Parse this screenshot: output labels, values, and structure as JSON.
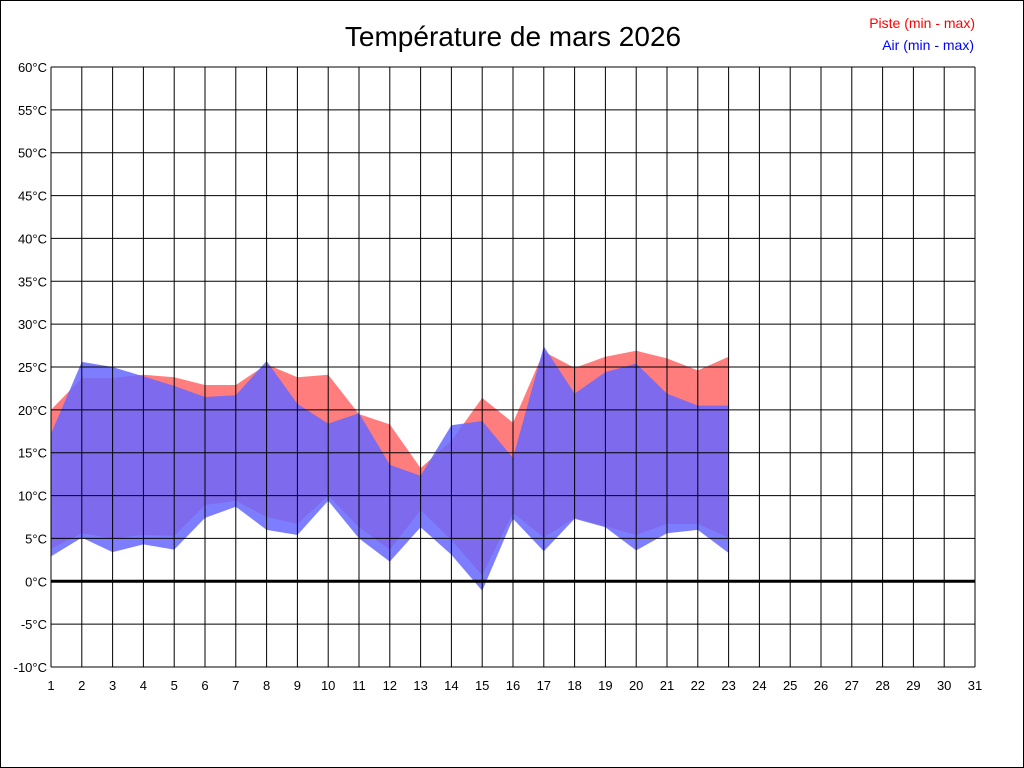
{
  "chart_data": {
    "type": "area",
    "title": "Température de mars 2026",
    "xlabel": "",
    "ylabel": "",
    "x": [
      1,
      2,
      3,
      4,
      5,
      6,
      7,
      8,
      9,
      10,
      11,
      12,
      13,
      14,
      15,
      16,
      17,
      18,
      19,
      20,
      21,
      22,
      23
    ],
    "x_ticks": [
      "1",
      "2",
      "3",
      "4",
      "5",
      "6",
      "7",
      "8",
      "9",
      "10",
      "11",
      "12",
      "13",
      "14",
      "15",
      "16",
      "17",
      "18",
      "19",
      "20",
      "21",
      "22",
      "23",
      "24",
      "25",
      "26",
      "27",
      "28",
      "29",
      "30",
      "31"
    ],
    "xlim": [
      1,
      31
    ],
    "ylim": [
      -10,
      60
    ],
    "y_ticks": [
      "-10°C",
      "-5°C",
      "0°C",
      "5°C",
      "10°C",
      "15°C",
      "20°C",
      "25°C",
      "30°C",
      "35°C",
      "40°C",
      "45°C",
      "50°C",
      "55°C",
      "60°C"
    ],
    "y_tick_values": [
      -10,
      -5,
      0,
      5,
      10,
      15,
      20,
      25,
      30,
      35,
      40,
      45,
      50,
      55,
      60
    ],
    "grid": true,
    "zero_line": true,
    "legend_position": "top-right",
    "series": [
      {
        "name": "Piste (min - max)",
        "color": "#ff0000",
        "fill": "#ff6666",
        "min": [
          3.8,
          5.6,
          5.0,
          5.4,
          5.3,
          8.9,
          9.4,
          7.5,
          6.7,
          10.0,
          6.3,
          3.7,
          8.3,
          4.8,
          0.7,
          8.0,
          5.1,
          7.4,
          6.4,
          5.4,
          6.7,
          6.7,
          5.1
        ],
        "max": [
          20.0,
          23.7,
          23.7,
          24.1,
          23.8,
          22.9,
          22.9,
          25.3,
          23.8,
          24.1,
          19.5,
          18.3,
          13.2,
          16.4,
          21.4,
          18.5,
          26.8,
          24.9,
          26.2,
          26.9,
          26.0,
          24.6,
          26.2
        ]
      },
      {
        "name": "Air (min - max)",
        "color": "#0000ff",
        "fill": "#6666ff",
        "min": [
          2.9,
          5.1,
          3.4,
          4.3,
          3.7,
          7.4,
          8.7,
          6.0,
          5.4,
          9.4,
          5.0,
          2.3,
          6.3,
          3.1,
          -1.1,
          7.3,
          3.5,
          7.3,
          6.3,
          3.6,
          5.6,
          6.0,
          3.3
        ],
        "max": [
          17.2,
          25.6,
          25.0,
          23.9,
          22.8,
          21.5,
          21.7,
          25.7,
          20.7,
          18.4,
          19.6,
          13.6,
          12.3,
          18.2,
          18.7,
          14.4,
          27.4,
          21.9,
          24.4,
          25.4,
          21.9,
          20.5,
          20.5
        ]
      }
    ]
  }
}
